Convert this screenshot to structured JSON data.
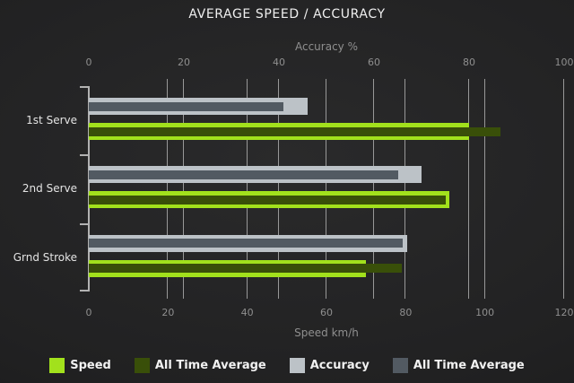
{
  "chart_data": {
    "type": "bar",
    "orientation": "horizontal",
    "title": "AVERAGE SPEED / ACCURACY",
    "categories": [
      "1st Serve",
      "2nd Serve",
      "Grnd Stroke"
    ],
    "axes": {
      "top": {
        "label": "Accuracy %",
        "min": 0,
        "max": 100,
        "ticks": [
          0,
          20,
          40,
          60,
          80,
          100
        ]
      },
      "bottom": {
        "label": "Speed km/h",
        "min": 0,
        "max": 120,
        "ticks": [
          0,
          20,
          40,
          60,
          80,
          100,
          120
        ]
      }
    },
    "grid": true,
    "legend_position": "bottom",
    "series": [
      {
        "name": "Speed",
        "axis": "bottom",
        "color": "#a2e11c",
        "values": [
          96,
          91,
          70
        ]
      },
      {
        "name": "All Time Average",
        "axis": "bottom",
        "color": "#394f09",
        "values": [
          104,
          90,
          79
        ]
      },
      {
        "name": "Accuracy",
        "axis": "top",
        "color": "#bcc2c7",
        "values": [
          46,
          70,
          67
        ]
      },
      {
        "name": "All Time Average",
        "axis": "top",
        "color": "#525a62",
        "values": [
          41,
          65,
          66
        ]
      }
    ]
  },
  "colors": {
    "background": "#202021",
    "gridline": "#989898",
    "axis_text": "#8f8f8f",
    "title_text": "#efefef"
  }
}
